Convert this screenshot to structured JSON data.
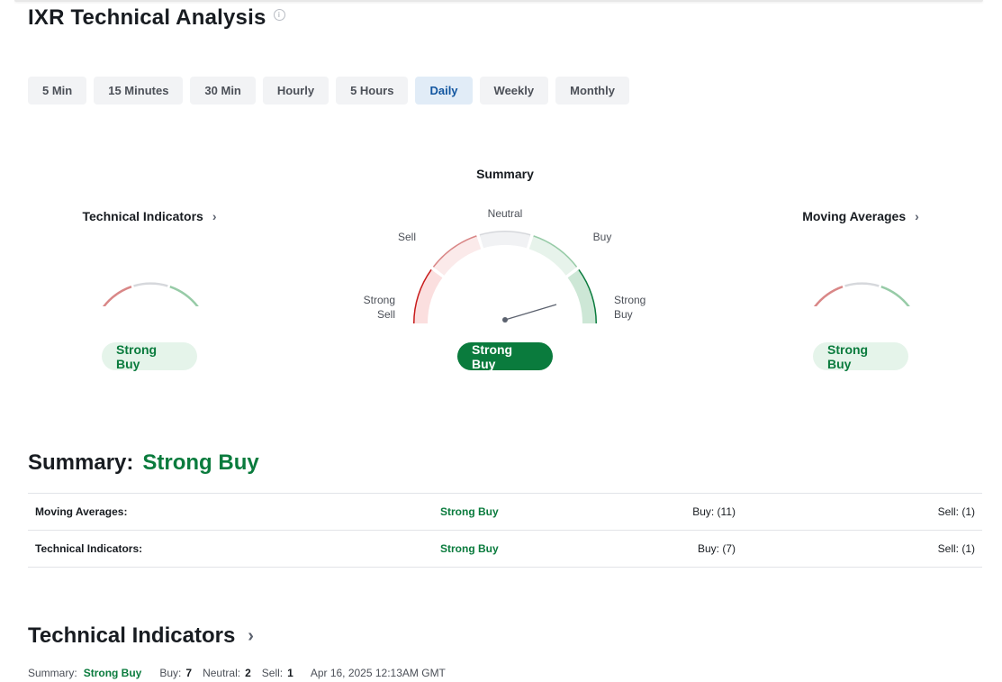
{
  "page": {
    "title": "IXR Technical Analysis"
  },
  "tabs": [
    {
      "label": "5 Min"
    },
    {
      "label": "15 Minutes"
    },
    {
      "label": "30 Min"
    },
    {
      "label": "Hourly"
    },
    {
      "label": "5 Hours"
    },
    {
      "label": "Daily",
      "active": true
    },
    {
      "label": "Weekly"
    },
    {
      "label": "Monthly"
    }
  ],
  "gauges": {
    "technical": {
      "title": "Technical Indicators",
      "status": "Strong Buy"
    },
    "summary": {
      "title": "Summary",
      "status": "Strong Buy",
      "labels": {
        "neutral": "Neutral",
        "sell": "Sell",
        "buy": "Buy",
        "strong_sell_1": "Strong",
        "strong_sell_2": "Sell",
        "strong_buy_1": "Strong",
        "strong_buy_2": "Buy"
      }
    },
    "moving": {
      "title": "Moving Averages",
      "status": "Strong Buy"
    }
  },
  "colors": {
    "strong_sell": "#c81b1b",
    "sell": "#d98787",
    "neutral": "#d6d8dc",
    "buy": "#97cba7",
    "strong_buy": "#0a7b3d"
  },
  "summary": {
    "label": "Summary:",
    "value": "Strong Buy",
    "rows": [
      {
        "label": "Moving Averages:",
        "status": "Strong Buy",
        "buy": "Buy: (11)",
        "sell": "Sell: (1)"
      },
      {
        "label": "Technical Indicators:",
        "status": "Strong Buy",
        "buy": "Buy: (7)",
        "sell": "Sell: (1)"
      }
    ]
  },
  "technical_indicators": {
    "title": "Technical Indicators",
    "summary_label": "Summary:",
    "summary_value": "Strong Buy",
    "buy_label": "Buy:",
    "buy_value": "7",
    "neutral_label": "Neutral:",
    "neutral_value": "2",
    "sell_label": "Sell:",
    "sell_value": "1",
    "timestamp": "Apr 16, 2025 12:13AM GMT"
  }
}
